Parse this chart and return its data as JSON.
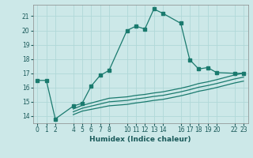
{
  "xlabel": "Humidex (Indice chaleur)",
  "bg_color": "#cce8e8",
  "grid_color": "#b0d8d8",
  "line_color": "#1a7a6e",
  "xlim": [
    -0.5,
    23.5
  ],
  "ylim": [
    13.5,
    21.8
  ],
  "xticks": [
    0,
    1,
    2,
    4,
    5,
    6,
    7,
    8,
    10,
    11,
    12,
    13,
    14,
    16,
    17,
    18,
    19,
    20,
    22,
    23
  ],
  "yticks": [
    14,
    15,
    16,
    17,
    18,
    19,
    20,
    21
  ],
  "line1_x": [
    0,
    1,
    2,
    4,
    5,
    6,
    7,
    8,
    10,
    11,
    12,
    13,
    14,
    16,
    17,
    18,
    19,
    20,
    22,
    23
  ],
  "line1_y": [
    16.5,
    16.5,
    13.8,
    14.7,
    14.9,
    16.1,
    16.85,
    17.2,
    20.0,
    20.3,
    20.1,
    21.5,
    21.2,
    20.5,
    17.95,
    17.3,
    17.4,
    17.05,
    17.0,
    17.0
  ],
  "line2_x": [
    4,
    5,
    8,
    10,
    11,
    12,
    13,
    14,
    16,
    17,
    18,
    19,
    20,
    22,
    23
  ],
  "line2_y": [
    14.5,
    14.75,
    15.25,
    15.35,
    15.45,
    15.52,
    15.62,
    15.7,
    15.95,
    16.1,
    16.28,
    16.4,
    16.55,
    16.88,
    17.0
  ],
  "line3_x": [
    4,
    5,
    8,
    10,
    11,
    12,
    13,
    14,
    16,
    17,
    18,
    19,
    20,
    22,
    23
  ],
  "line3_y": [
    14.3,
    14.55,
    15.0,
    15.1,
    15.2,
    15.28,
    15.38,
    15.45,
    15.7,
    15.85,
    16.02,
    16.14,
    16.28,
    16.6,
    16.73
  ],
  "line4_x": [
    4,
    5,
    8,
    10,
    11,
    12,
    13,
    14,
    16,
    17,
    18,
    19,
    20,
    22,
    23
  ],
  "line4_y": [
    14.1,
    14.35,
    14.72,
    14.82,
    14.92,
    15.0,
    15.1,
    15.17,
    15.42,
    15.57,
    15.74,
    15.86,
    16.0,
    16.32,
    16.45
  ]
}
